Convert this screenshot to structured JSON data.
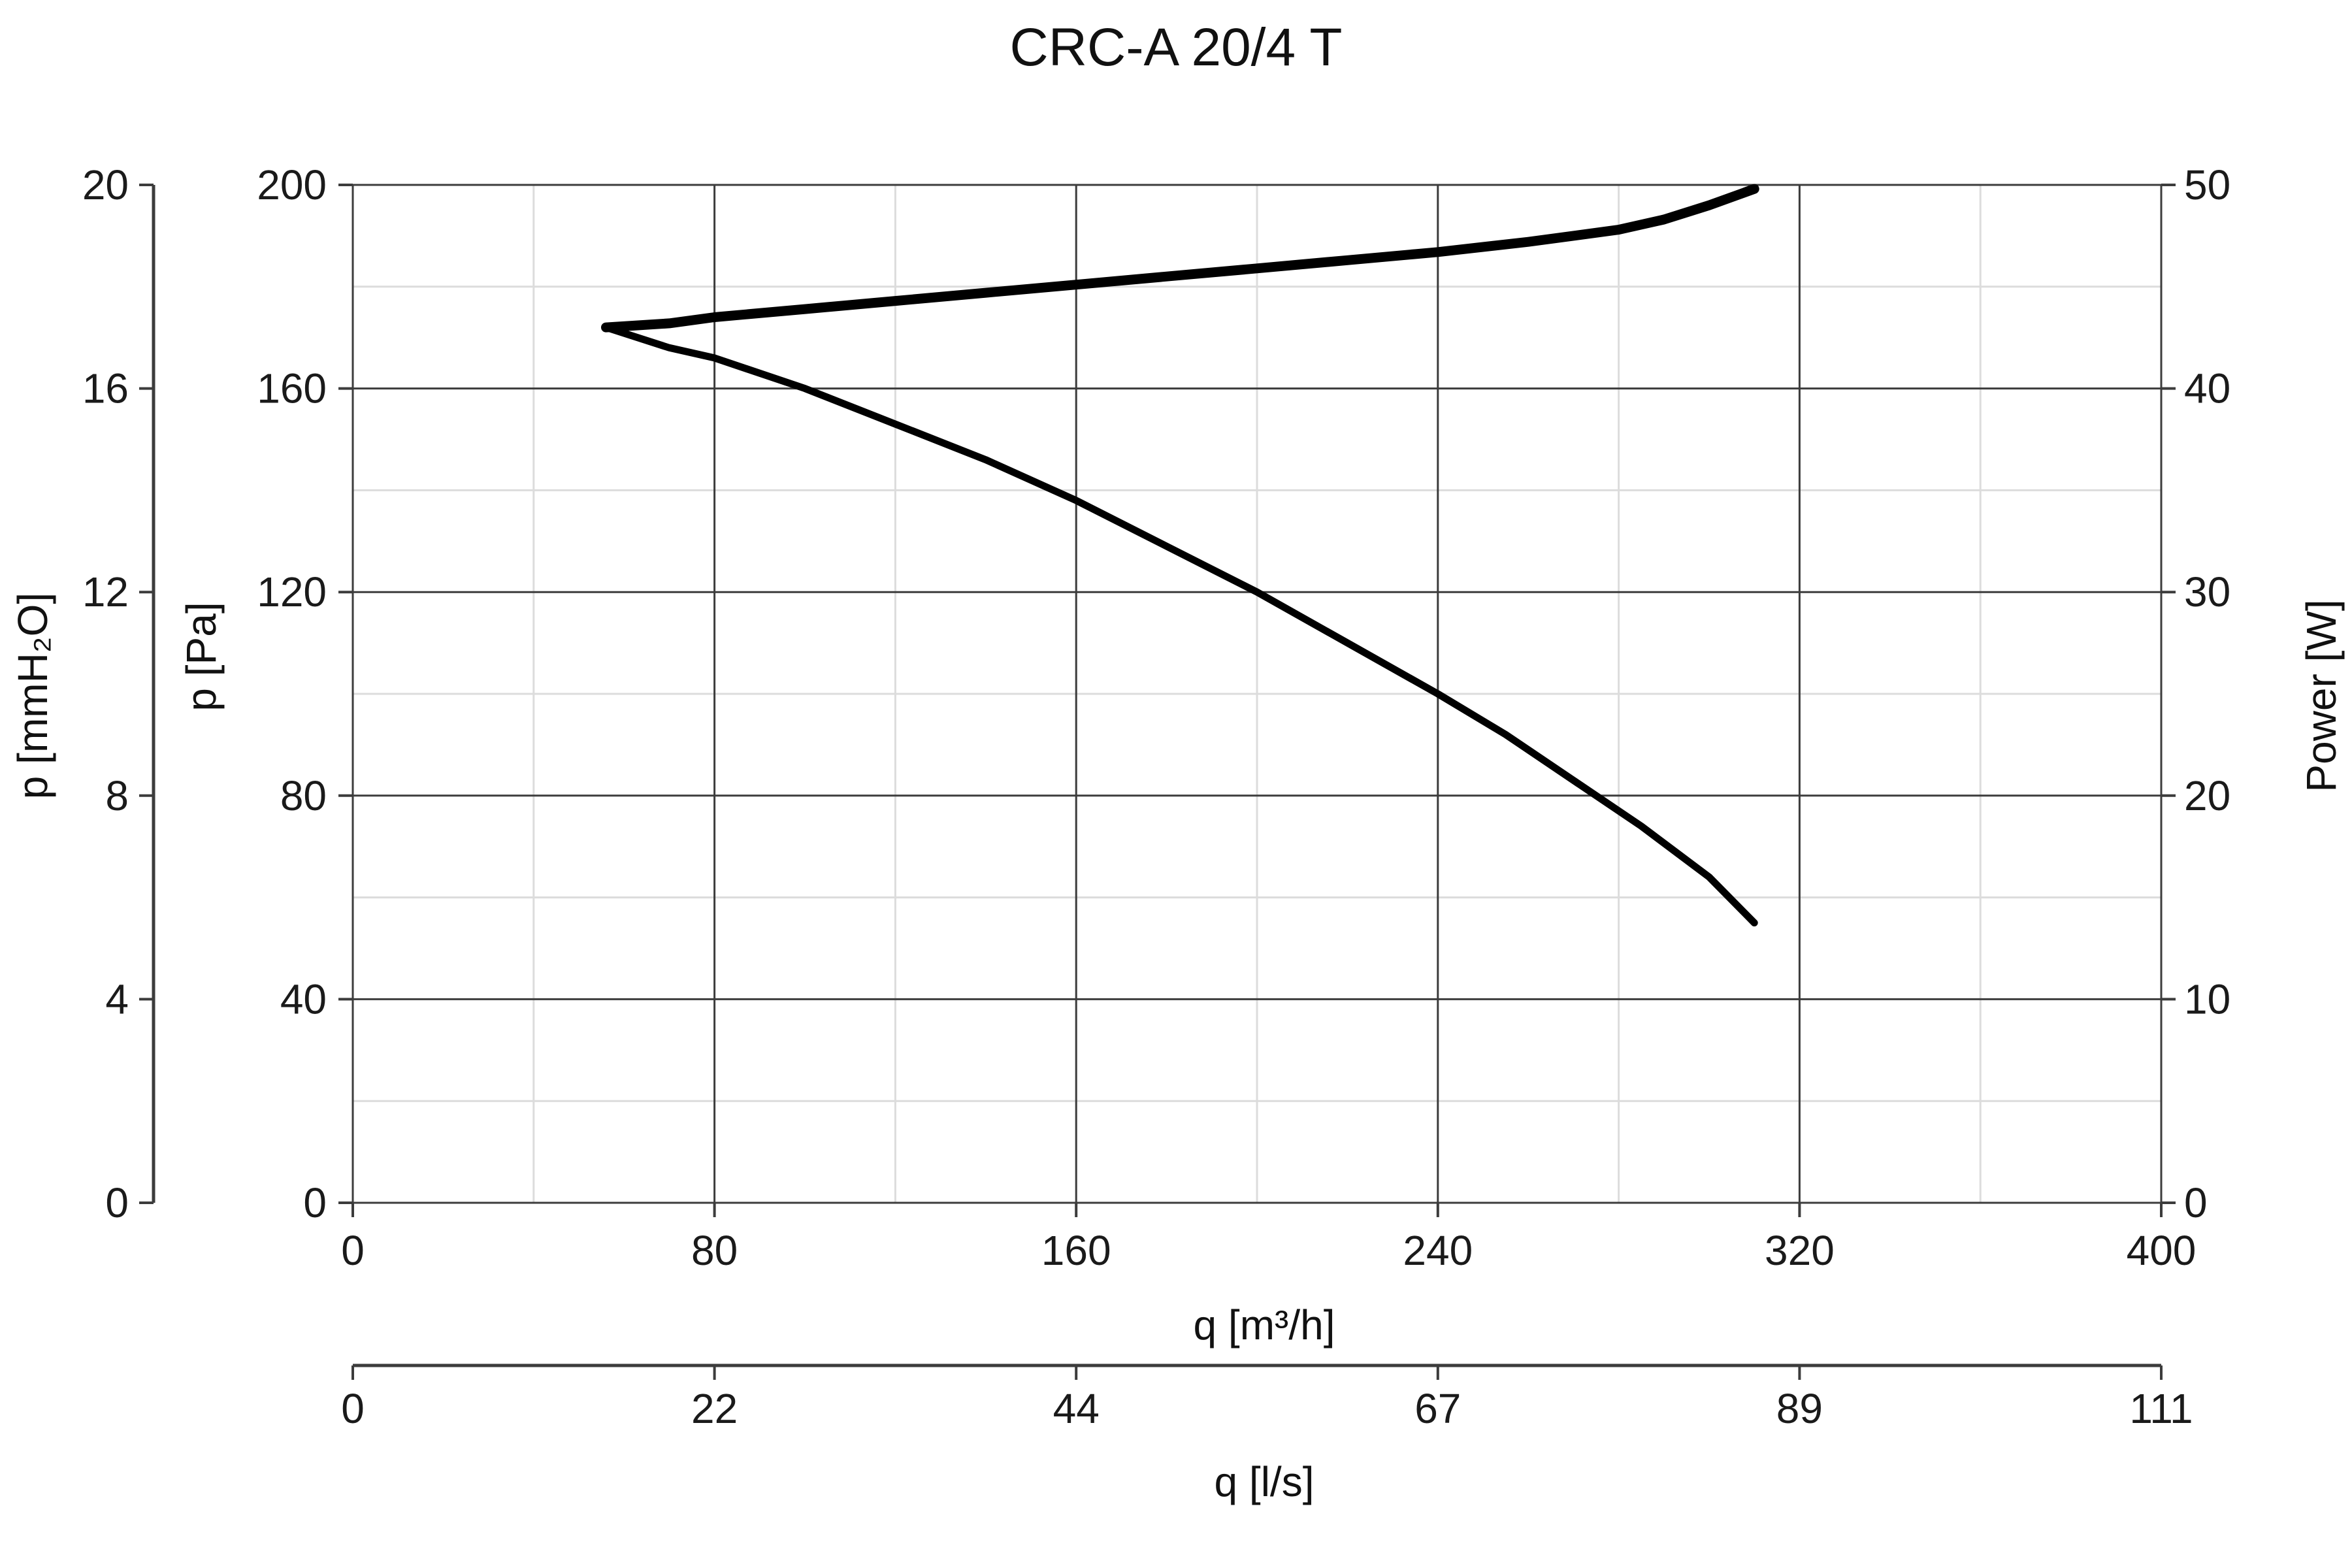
{
  "chart_data": {
    "type": "line",
    "title": "CRC-A 20/4 T",
    "x_axis": {
      "label": "q [m³/h]",
      "lim": [
        0,
        400
      ],
      "ticks": [
        0,
        80,
        160,
        240,
        320,
        400
      ],
      "tick_labels": [
        "0",
        "80",
        "160",
        "240",
        "320",
        "400"
      ]
    },
    "x2_axis": {
      "label": "q [l/s]",
      "tick_labels": [
        "0",
        "22",
        "44",
        "67",
        "89",
        "111"
      ]
    },
    "y_axis": {
      "label": "p [Pa]",
      "lim": [
        0,
        200
      ],
      "ticks": [
        0,
        40,
        80,
        120,
        160,
        200
      ],
      "tick_labels": [
        "0",
        "40",
        "80",
        "120",
        "160",
        "200"
      ]
    },
    "y_outer_axis": {
      "label": "p [mmH₂O]",
      "tick_labels": [
        "0",
        "4",
        "8",
        "12",
        "16",
        "20"
      ]
    },
    "y_right_axis": {
      "label": "Power [W]",
      "lim": [
        0,
        50
      ],
      "tick_labels": [
        "0",
        "10",
        "20",
        "30",
        "40",
        "50"
      ]
    },
    "grid": true,
    "series": [
      {
        "axis": "left",
        "color": "#000000",
        "x": [
          56,
          70,
          80,
          100,
          120,
          140,
          160,
          180,
          200,
          220,
          240,
          255,
          270,
          285,
          300,
          310
        ],
        "y": [
          172,
          168,
          166,
          160,
          153,
          146,
          138,
          129,
          120,
          110,
          100,
          92,
          83,
          74,
          64,
          55
        ]
      },
      {
        "axis": "right",
        "color": "#000000",
        "x": [
          56,
          70,
          80,
          100,
          120,
          140,
          160,
          180,
          200,
          220,
          240,
          260,
          280,
          290,
          300,
          310
        ],
        "y": [
          43,
          43.2,
          43.5,
          43.9,
          44.3,
          44.7,
          45.1,
          45.5,
          45.9,
          46.3,
          46.7,
          47.2,
          47.8,
          48.3,
          49.0,
          49.8
        ]
      }
    ]
  }
}
